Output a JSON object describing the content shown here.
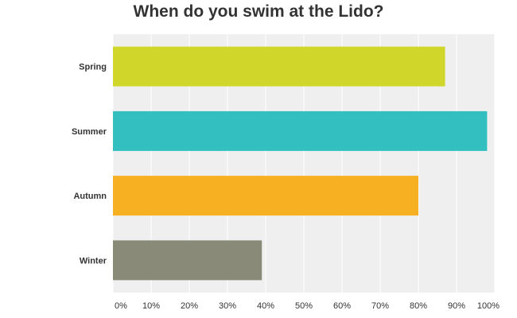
{
  "chart_data": {
    "type": "bar",
    "orientation": "horizontal",
    "title": "When do you swim at the Lido?",
    "categories": [
      "Spring",
      "Summer",
      "Autumn",
      "Winter"
    ],
    "values": [
      87,
      98,
      80,
      39
    ],
    "colors": [
      "#d0d62a",
      "#33bec0",
      "#f7b021",
      "#898a78"
    ],
    "xlim": [
      0,
      100
    ],
    "x_ticks": [
      "0%",
      "10%",
      "20%",
      "30%",
      "40%",
      "50%",
      "60%",
      "70%",
      "80%",
      "90%",
      "100%"
    ],
    "grid": true,
    "plot_background": "#efefef",
    "gridline_color": "#ffffff"
  }
}
